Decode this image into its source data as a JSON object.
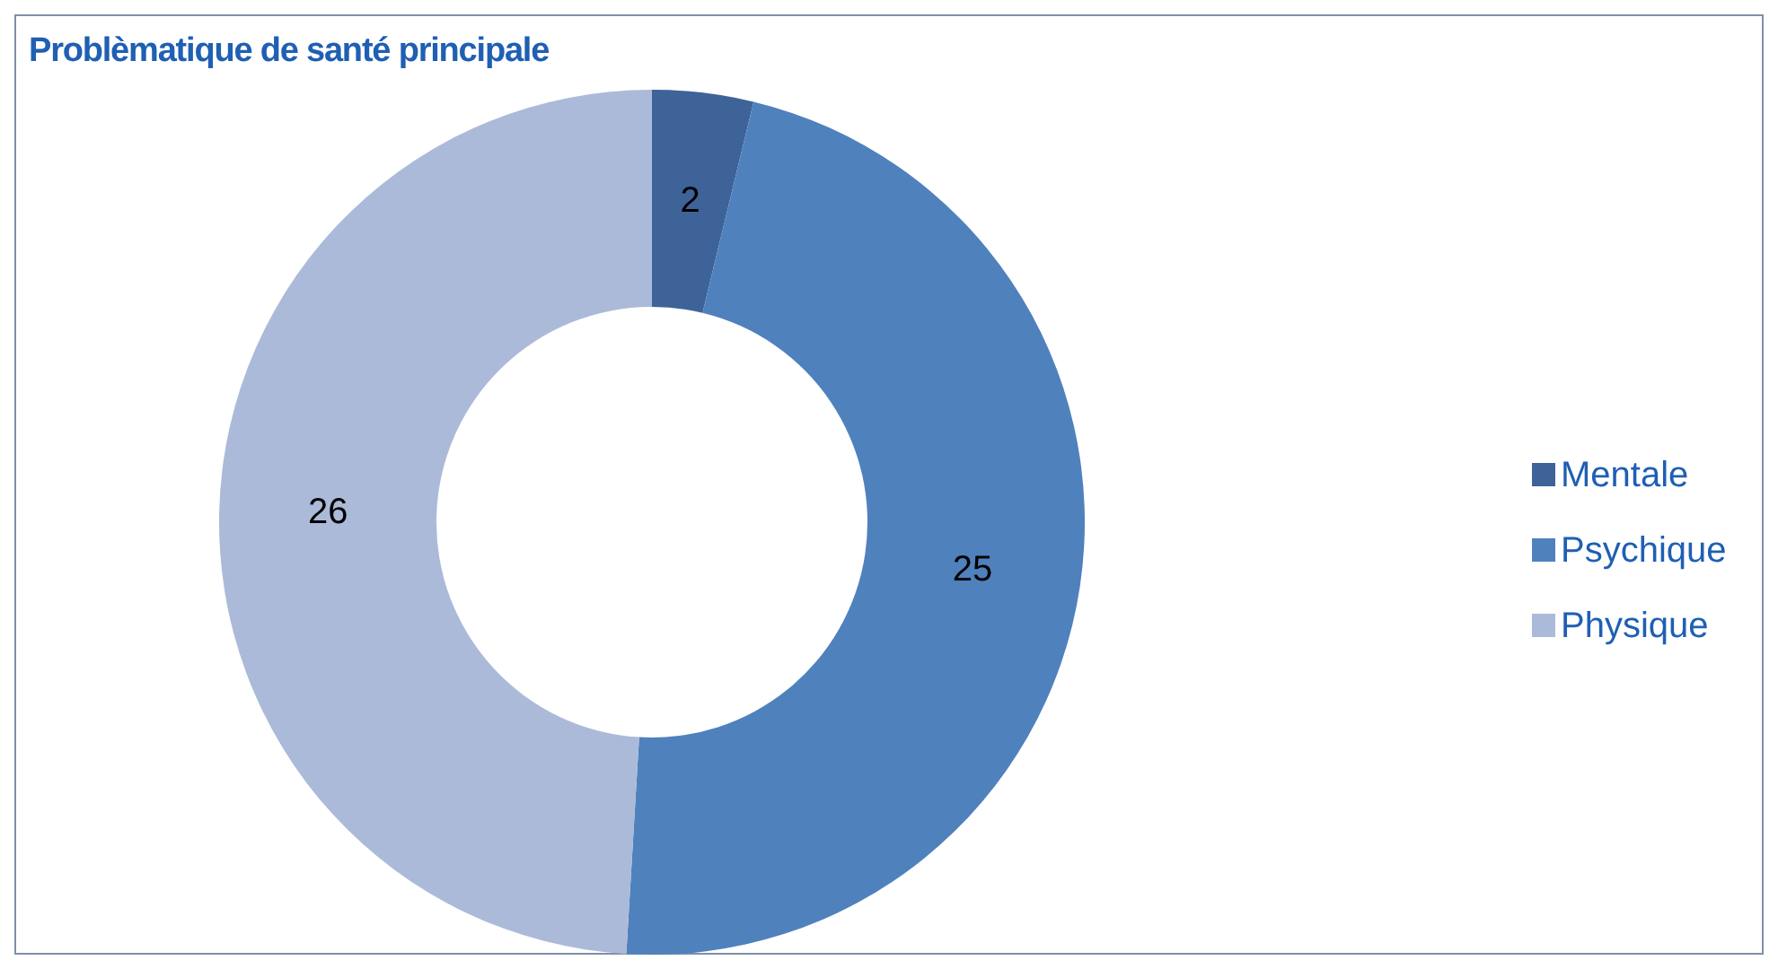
{
  "chart_data": {
    "type": "donut",
    "title": "Problèmatique de santé principale",
    "categories": [
      "Mentale",
      "Psychique",
      "Physique"
    ],
    "values": [
      2,
      25,
      26
    ],
    "colors": [
      "#3e6398",
      "#4f81bd",
      "#abbad9"
    ],
    "data_labels": true,
    "legend": "right"
  }
}
